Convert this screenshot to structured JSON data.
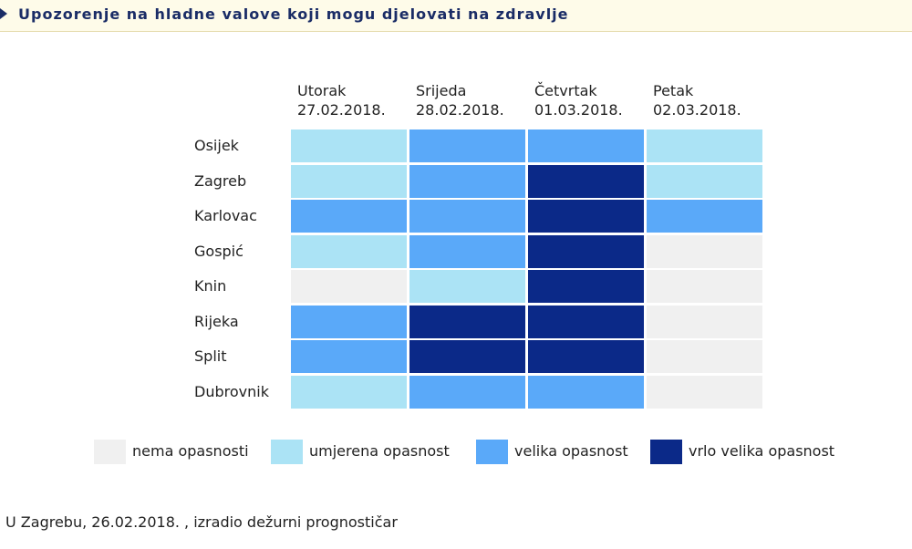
{
  "title": "Upozorenje na hladne valove koji mogu djelovati na zdravlje",
  "levels": {
    "0": {
      "label": "nema opasnosti",
      "color": "#f0f0f0"
    },
    "1": {
      "label": "umjerena opasnost",
      "color": "#abe3f5"
    },
    "2": {
      "label": "velika opasnost",
      "color": "#5aa9f9"
    },
    "3": {
      "label": "vrlo velika opasnost",
      "color": "#0b2988"
    }
  },
  "days": [
    {
      "name": "Utorak",
      "date": "27.02.2018."
    },
    {
      "name": "Srijeda",
      "date": "28.02.2018."
    },
    {
      "name": "Četvrtak",
      "date": "01.03.2018."
    },
    {
      "name": "Petak",
      "date": "02.03.2018."
    }
  ],
  "cities": [
    {
      "name": "Osijek",
      "levels": [
        1,
        2,
        2,
        1
      ]
    },
    {
      "name": "Zagreb",
      "levels": [
        1,
        2,
        3,
        1
      ]
    },
    {
      "name": "Karlovac",
      "levels": [
        2,
        2,
        3,
        2
      ]
    },
    {
      "name": "Gospić",
      "levels": [
        1,
        2,
        3,
        0
      ]
    },
    {
      "name": "Knin",
      "levels": [
        0,
        1,
        3,
        0
      ]
    },
    {
      "name": "Rijeka",
      "levels": [
        2,
        3,
        3,
        0
      ]
    },
    {
      "name": "Split",
      "levels": [
        2,
        3,
        3,
        0
      ]
    },
    {
      "name": "Dubrovnik",
      "levels": [
        1,
        2,
        2,
        0
      ]
    }
  ],
  "legend": [
    "0",
    "1",
    "2",
    "3"
  ],
  "footer": "U Zagrebu, 26.02.2018. , izradio dežurni prognostičar"
}
